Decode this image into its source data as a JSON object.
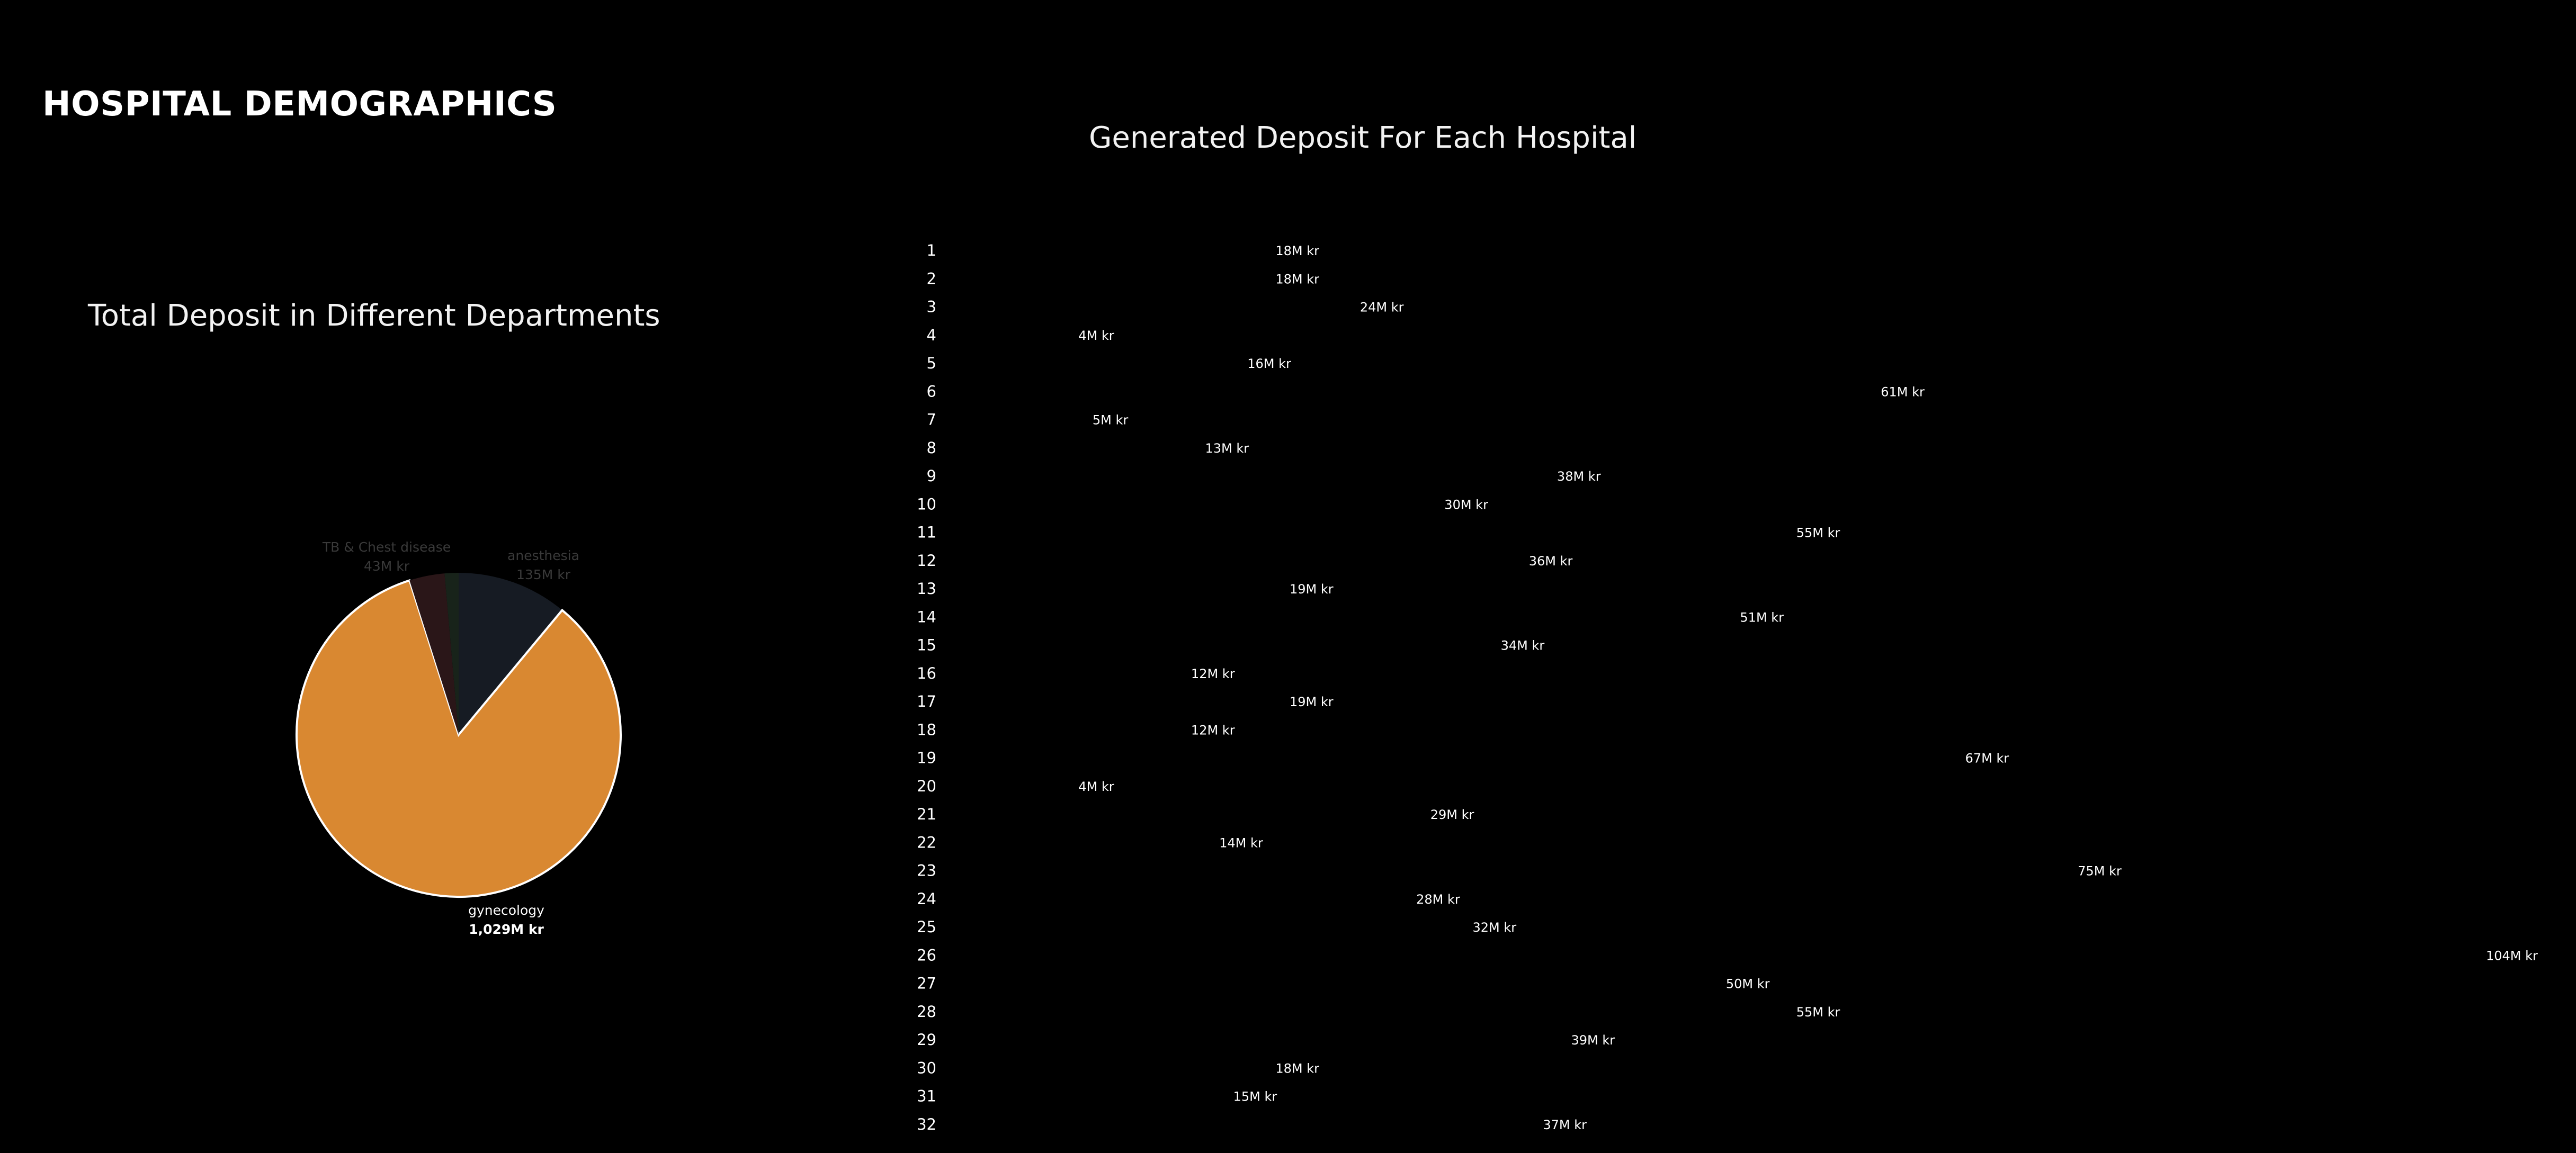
{
  "dashboard": {
    "title": "HOSPITAL DEMOGRAPHICS"
  },
  "colors": {
    "background": "#000000",
    "bar_gradient_start": "#a8343f",
    "bar_gradient_end": "#f2d068",
    "gynecology": "#d98831",
    "tb_chest": "#2a1618",
    "anesthesia": "#161b23",
    "other_dept": "#18231a"
  },
  "chart_data": [
    {
      "type": "pie",
      "title": "Total Deposit in Different Departments",
      "slices": [
        {
          "label": "anesthesia",
          "value": 135,
          "value_label": "135M kr",
          "color": "#161b23",
          "highlighted": false
        },
        {
          "label": "gynecology",
          "value": 1029,
          "value_label": "1,029M kr",
          "color": "#d98831",
          "highlighted": true
        },
        {
          "label": "TB & Chest disease",
          "value": 43,
          "value_label": "43M kr",
          "color": "#2a1618",
          "highlighted": false
        },
        {
          "label": "",
          "value": 17,
          "value_label": "",
          "color": "#18231a",
          "highlighted": false
        }
      ]
    },
    {
      "type": "bar",
      "orientation": "horizontal",
      "title": "Generated Deposit For Each Hospital",
      "unit": "M kr",
      "categories": [
        "1",
        "2",
        "3",
        "4",
        "5",
        "6",
        "7",
        "8",
        "9",
        "10",
        "11",
        "12",
        "13",
        "14",
        "15",
        "16",
        "17",
        "18",
        "19",
        "20",
        "21",
        "22",
        "23",
        "24",
        "25",
        "26",
        "27",
        "28",
        "29",
        "30",
        "31",
        "32"
      ],
      "values": [
        18,
        18,
        24,
        4,
        16,
        61,
        5,
        13,
        38,
        30,
        55,
        36,
        19,
        51,
        34,
        12,
        19,
        12,
        67,
        4,
        29,
        14,
        75,
        28,
        32,
        104,
        50,
        55,
        39,
        18,
        15,
        37
      ],
      "labels": [
        "18M kr",
        "18M kr",
        "24M kr",
        "4M kr",
        "16M kr",
        "61M kr",
        "5M kr",
        "13M kr",
        "38M kr",
        "30M kr",
        "55M kr",
        "36M kr",
        "19M kr",
        "51M kr",
        "34M kr",
        "12M kr",
        "19M kr",
        "12M kr",
        "67M kr",
        "4M kr",
        "29M kr",
        "14M kr",
        "75M kr",
        "28M kr",
        "32M kr",
        "104M kr",
        "50M kr",
        "55M kr",
        "39M kr",
        "18M kr",
        "15M kr",
        "37M kr"
      ],
      "xlim": [
        0,
        104
      ]
    }
  ]
}
